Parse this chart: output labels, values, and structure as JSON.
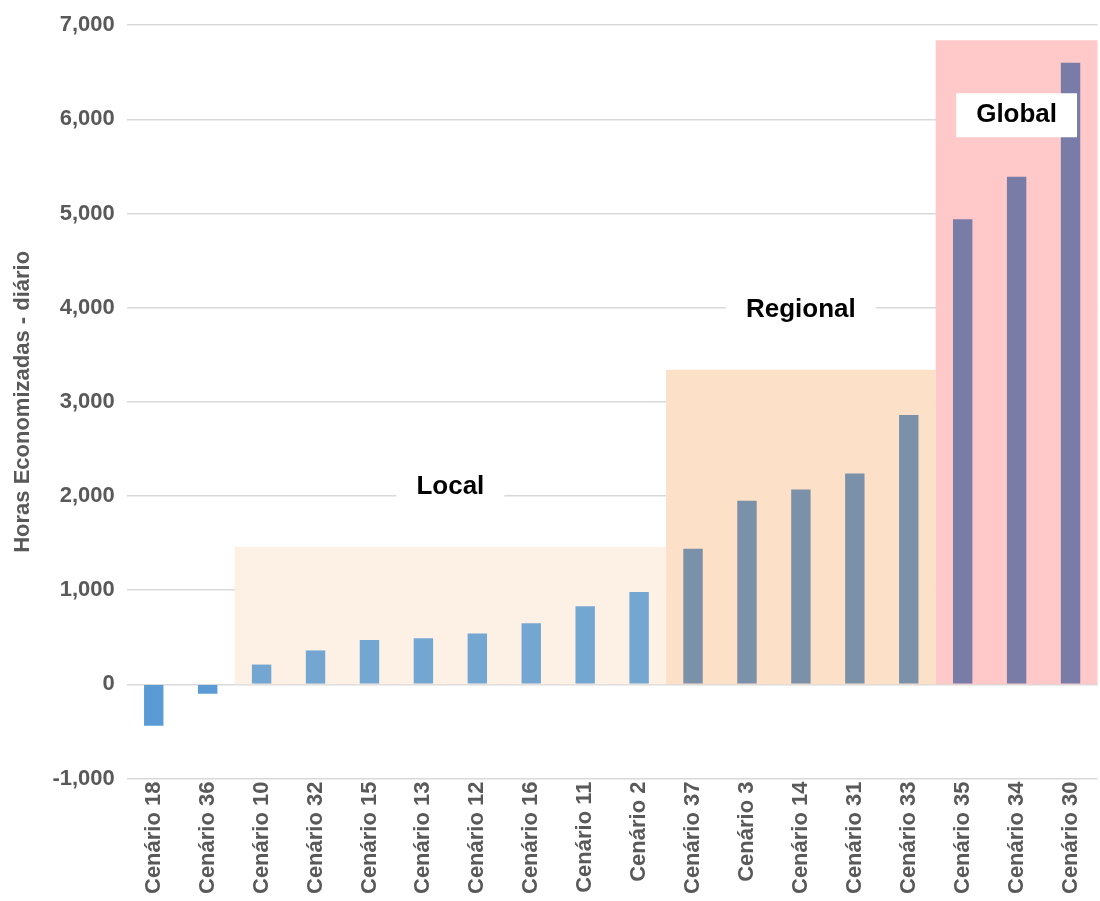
{
  "chart_data": {
    "type": "bar",
    "ylabel": "Horas Economizadas - diário",
    "categories": [
      "Cenário 18",
      "Cenário 36",
      "Cenário 10",
      "Cenário 32",
      "Cenário 15",
      "Cenário 13",
      "Cenário 12",
      "Cenário 16",
      "Cenário 11",
      "Cenário 2",
      "Cenário 37",
      "Cenário 3",
      "Cenário 14",
      "Cenário 31",
      "Cenário 33",
      "Cenário 35",
      "Cenário 34",
      "Cenário 30"
    ],
    "colors": [
      "#5b9bd5",
      "#5b9bd5",
      "#74a6d2",
      "#74a6d2",
      "#74a6d2",
      "#74a6d2",
      "#74a6d2",
      "#74a6d2",
      "#74a6d2",
      "#74a6d2",
      "#7b91a9",
      "#7b91a9",
      "#7b91a9",
      "#7b91a9",
      "#7b91a9",
      "#7a7ca8",
      "#7a7ca8",
      "#7a7ca8"
    ],
    "values": [
      -440,
      -100,
      210,
      360,
      470,
      490,
      540,
      650,
      830,
      980,
      1440,
      1950,
      2070,
      2240,
      2860,
      4940,
      5390,
      6600
    ],
    "ylim": [
      -1000,
      7000
    ],
    "yticks": [
      {
        "value": -1000,
        "label": "-1,000"
      },
      0,
      {
        "value": 1000,
        "label": "1,000"
      },
      {
        "value": 2000,
        "label": "2,000"
      },
      {
        "value": 3000,
        "label": "3,000"
      },
      {
        "value": 4000,
        "label": "4,000"
      },
      {
        "value": 5000,
        "label": "5,000"
      },
      {
        "value": 6000,
        "label": "6,000"
      },
      {
        "value": 7000,
        "label": "7,000"
      }
    ],
    "grid": "y",
    "legend": false,
    "bands": [
      {
        "axis": "x",
        "from": "Cenário 10",
        "to": "Cenário 2",
        "label": "Local",
        "color": "#fdf1e6"
      },
      {
        "axis": "x",
        "from": "Cenário 37",
        "to": "Cenário 33",
        "label": "Regional",
        "color": "#fde0c8"
      },
      {
        "axis": "x",
        "from": "Cenário 35",
        "to": "Cenário 30",
        "label": "Global",
        "color": "#ffc9c9"
      }
    ]
  }
}
